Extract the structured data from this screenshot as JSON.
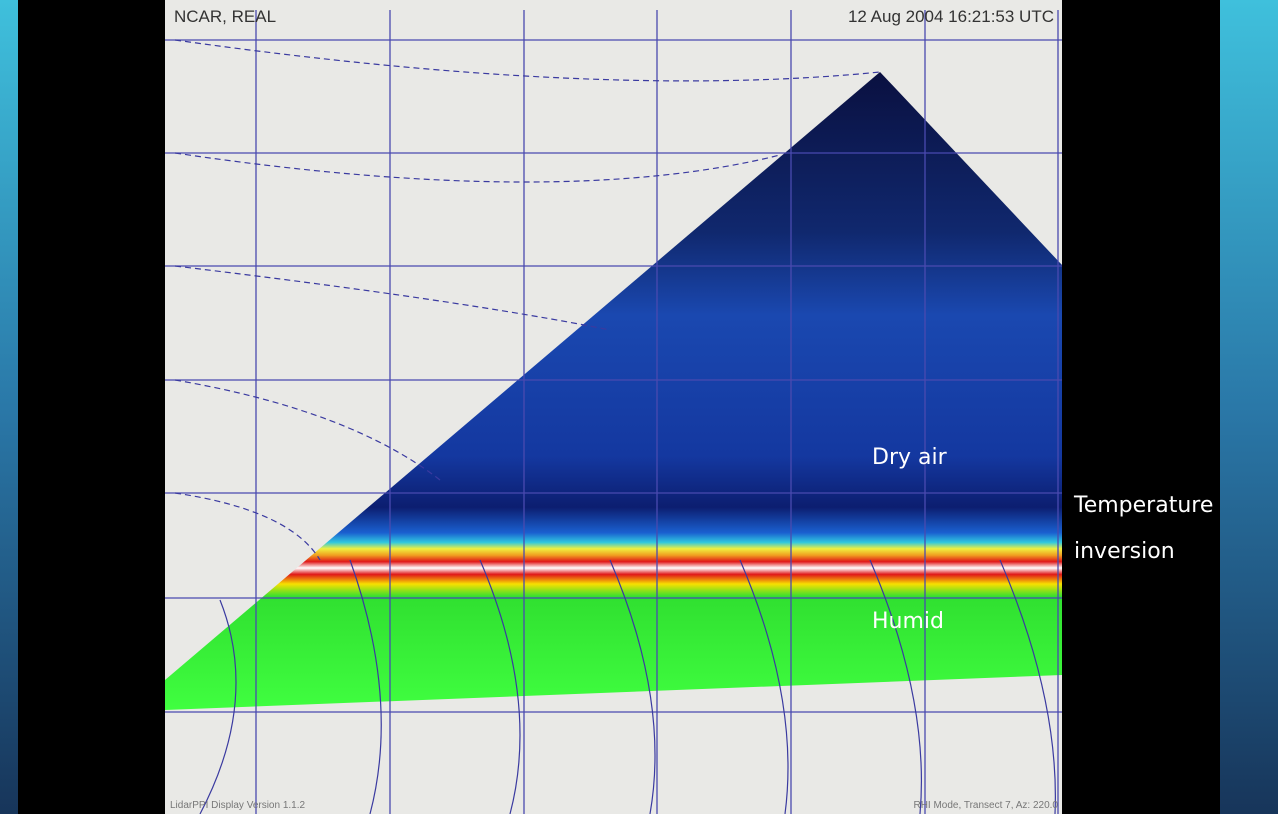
{
  "display": {
    "header_left": "NCAR, REAL",
    "header_right": "12 Aug 2004  16:21:53 UTC",
    "footer_left": "LidarPPI Display Version 1.1.2",
    "footer_right": "RHI Mode, Transect 7, Az: 220.0"
  },
  "annotations": {
    "dry_air": "Dry air",
    "temperature_inversion": [
      "Temperature",
      "inversion"
    ],
    "humid": "Humid"
  }
}
